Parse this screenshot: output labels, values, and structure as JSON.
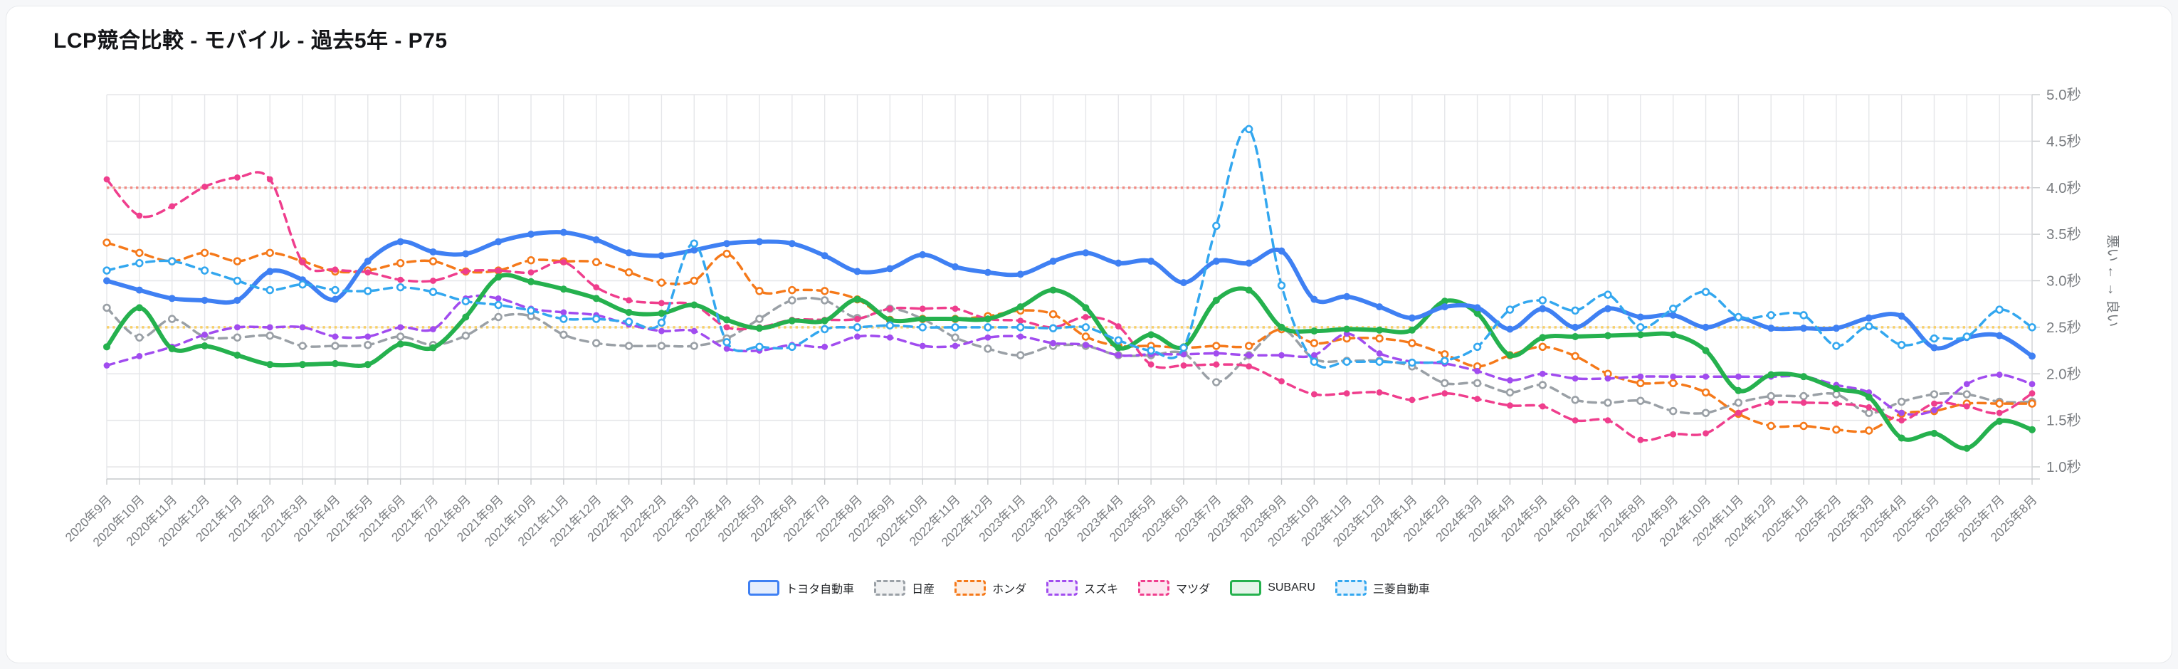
{
  "page": {
    "title": "LCP競合比較 - モバイル - 過去5年 - P75"
  },
  "chart_data": {
    "type": "line",
    "title": "LCP競合比較 - モバイル - 過去5年 - P75",
    "y_axis_title": "悪い ← → 良い",
    "y_unit": "秒",
    "ylim": [
      0.87,
      5.0
    ],
    "grid": true,
    "legend_position": "bottom",
    "y_tick_labels": [
      "1.0秒",
      "1.5秒",
      "2.0秒",
      "2.5秒",
      "3.0秒",
      "3.5秒",
      "4.0秒",
      "4.5秒",
      "5.0秒"
    ],
    "y_tick_values": [
      1.0,
      1.5,
      2.0,
      2.5,
      3.0,
      3.5,
      4.0,
      4.5,
      5.0
    ],
    "guidelines": [
      {
        "name": "poor-threshold",
        "value": 4.0,
        "color": "#F28C84"
      },
      {
        "name": "needs-improvement-threshold",
        "value": 2.5,
        "color": "#F8D06B"
      }
    ],
    "x_labels": [
      "2020年9月",
      "2020年10月",
      "2020年11月",
      "2020年12月",
      "2021年1月",
      "2021年2月",
      "2021年3月",
      "2021年4月",
      "2021年5月",
      "2021年6月",
      "2021年7月",
      "2021年8月",
      "2021年9月",
      "2021年10月",
      "2021年11月",
      "2021年12月",
      "2022年1月",
      "2022年2月",
      "2022年3月",
      "2022年4月",
      "2022年5月",
      "2022年6月",
      "2022年7月",
      "2022年8月",
      "2022年9月",
      "2022年10月",
      "2022年11月",
      "2022年12月",
      "2023年1月",
      "2023年2月",
      "2023年3月",
      "2023年4月",
      "2023年5月",
      "2023年6月",
      "2023年7月",
      "2023年8月",
      "2023年9月",
      "2023年10月",
      "2023年11月",
      "2023年12月",
      "2024年1月",
      "2024年2月",
      "2024年3月",
      "2024年4月",
      "2024年5月",
      "2024年6月",
      "2024年7月",
      "2024年8月",
      "2024年9月",
      "2024年10月",
      "2024年11月",
      "2024年12月",
      "2025年1月",
      "2025年2月",
      "2025年3月",
      "2025年4月",
      "2025年5月",
      "2025年6月",
      "2025年7月",
      "2025年8月"
    ],
    "series": [
      {
        "key": "toyota",
        "name": "トヨタ自動車",
        "color": "#3F80F3",
        "tint": "#E5EEFD",
        "style": "solid",
        "width": 6,
        "marker": "filled",
        "values": [
          3.0,
          2.9,
          2.81,
          2.79,
          2.79,
          3.1,
          3.01,
          2.8,
          3.21,
          3.42,
          3.31,
          3.29,
          3.42,
          3.5,
          3.52,
          3.44,
          3.3,
          3.27,
          3.33,
          3.4,
          3.42,
          3.4,
          3.27,
          3.1,
          3.13,
          3.28,
          3.15,
          3.09,
          3.07,
          3.21,
          3.3,
          3.19,
          3.21,
          2.98,
          3.21,
          3.19,
          3.32,
          2.8,
          2.83,
          2.72,
          2.6,
          2.72,
          2.71,
          2.48,
          2.7,
          2.5,
          2.7,
          2.61,
          2.63,
          2.5,
          2.6,
          2.49,
          2.49,
          2.49,
          2.6,
          2.62,
          2.28,
          2.39,
          2.41,
          2.19
        ]
      },
      {
        "key": "nissan",
        "name": "日産",
        "color": "#9AA0A6",
        "tint": "#F0F1F2",
        "style": "dashed",
        "width": 3.5,
        "marker": "open",
        "values": [
          2.71,
          2.39,
          2.59,
          2.4,
          2.39,
          2.41,
          2.3,
          2.3,
          2.31,
          2.4,
          2.31,
          2.41,
          2.61,
          2.62,
          2.42,
          2.33,
          2.3,
          2.3,
          2.3,
          2.38,
          2.59,
          2.79,
          2.79,
          2.6,
          2.7,
          2.59,
          2.39,
          2.27,
          2.2,
          2.3,
          2.3,
          2.2,
          2.2,
          2.22,
          1.91,
          2.2,
          2.48,
          2.16,
          2.14,
          2.14,
          2.08,
          1.9,
          1.9,
          1.8,
          1.88,
          1.72,
          1.69,
          1.71,
          1.6,
          1.58,
          1.69,
          1.76,
          1.76,
          1.78,
          1.58,
          1.7,
          1.78,
          1.78,
          1.7,
          1.7
        ]
      },
      {
        "key": "honda",
        "name": "ホンダ",
        "color": "#F5791A",
        "tint": "#FDEEE2",
        "style": "dashed",
        "width": 3.5,
        "marker": "open",
        "values": [
          3.41,
          3.3,
          3.21,
          3.3,
          3.21,
          3.3,
          3.21,
          3.1,
          3.11,
          3.19,
          3.21,
          3.1,
          3.11,
          3.22,
          3.21,
          3.2,
          3.09,
          2.98,
          3.0,
          3.29,
          2.89,
          2.9,
          2.89,
          2.8,
          2.58,
          2.59,
          2.59,
          2.62,
          2.68,
          2.64,
          2.4,
          2.3,
          2.3,
          2.28,
          2.3,
          2.3,
          2.48,
          2.33,
          2.38,
          2.38,
          2.33,
          2.21,
          2.08,
          2.2,
          2.29,
          2.19,
          2.0,
          1.9,
          1.9,
          1.8,
          1.57,
          1.44,
          1.44,
          1.4,
          1.39,
          1.57,
          1.6,
          1.68,
          1.68,
          1.68
        ]
      },
      {
        "key": "suzuki",
        "name": "スズキ",
        "color": "#A14CEF",
        "tint": "#F3E9FD",
        "style": "dashed",
        "width": 3.5,
        "marker": "filled",
        "values": [
          2.09,
          2.19,
          2.29,
          2.42,
          2.5,
          2.5,
          2.5,
          2.4,
          2.4,
          2.5,
          2.48,
          2.81,
          2.81,
          2.7,
          2.66,
          2.63,
          2.53,
          2.46,
          2.46,
          2.27,
          2.25,
          2.31,
          2.29,
          2.4,
          2.39,
          2.3,
          2.3,
          2.39,
          2.4,
          2.33,
          2.31,
          2.2,
          2.21,
          2.21,
          2.22,
          2.2,
          2.2,
          2.2,
          2.43,
          2.22,
          2.13,
          2.11,
          2.03,
          1.93,
          2.0,
          1.95,
          1.95,
          1.97,
          1.97,
          1.97,
          1.97,
          1.97,
          1.97,
          1.88,
          1.8,
          1.58,
          1.61,
          1.89,
          1.99,
          1.89
        ]
      },
      {
        "key": "mazda",
        "name": "マツダ",
        "color": "#EF3E8D",
        "tint": "#FDE5F0",
        "style": "dashed",
        "width": 3.5,
        "marker": "filled",
        "values": [
          4.09,
          3.7,
          3.8,
          4.01,
          4.11,
          4.09,
          3.2,
          3.12,
          3.09,
          3.01,
          3.0,
          3.1,
          3.11,
          3.09,
          3.2,
          2.93,
          2.79,
          2.76,
          2.74,
          2.5,
          2.5,
          2.58,
          2.58,
          2.59,
          2.7,
          2.7,
          2.7,
          2.59,
          2.57,
          2.5,
          2.61,
          2.51,
          2.1,
          2.09,
          2.1,
          2.08,
          1.92,
          1.78,
          1.79,
          1.8,
          1.72,
          1.79,
          1.73,
          1.66,
          1.65,
          1.5,
          1.5,
          1.29,
          1.35,
          1.36,
          1.58,
          1.69,
          1.69,
          1.68,
          1.64,
          1.5,
          1.68,
          1.65,
          1.58,
          1.79
        ]
      },
      {
        "key": "subaru",
        "name": "SUBARU",
        "color": "#25B14E",
        "tint": "#E4F5E9",
        "style": "solid",
        "width": 6,
        "marker": "filled",
        "values": [
          2.29,
          2.71,
          2.27,
          2.3,
          2.2,
          2.1,
          2.1,
          2.11,
          2.1,
          2.32,
          2.28,
          2.61,
          3.04,
          2.99,
          2.91,
          2.81,
          2.66,
          2.65,
          2.74,
          2.58,
          2.49,
          2.57,
          2.57,
          2.8,
          2.58,
          2.59,
          2.59,
          2.59,
          2.72,
          2.9,
          2.71,
          2.28,
          2.42,
          2.29,
          2.79,
          2.9,
          2.5,
          2.46,
          2.48,
          2.47,
          2.47,
          2.78,
          2.65,
          2.2,
          2.39,
          2.4,
          2.41,
          2.42,
          2.42,
          2.25,
          1.82,
          1.99,
          1.97,
          1.84,
          1.75,
          1.31,
          1.36,
          1.2,
          1.49,
          1.4
        ]
      },
      {
        "key": "mitsubishi",
        "name": "三菱自動車",
        "color": "#33A7EF",
        "tint": "#E3F2FD",
        "style": "dashed",
        "width": 3.5,
        "marker": "open",
        "values": [
          3.11,
          3.19,
          3.21,
          3.11,
          3.0,
          2.9,
          2.96,
          2.9,
          2.89,
          2.93,
          2.88,
          2.78,
          2.74,
          2.68,
          2.59,
          2.59,
          2.56,
          2.55,
          3.4,
          2.34,
          2.29,
          2.29,
          2.48,
          2.5,
          2.52,
          2.5,
          2.5,
          2.5,
          2.5,
          2.49,
          2.5,
          2.36,
          2.25,
          2.28,
          3.59,
          4.63,
          2.95,
          2.13,
          2.13,
          2.13,
          2.12,
          2.14,
          2.29,
          2.69,
          2.79,
          2.68,
          2.85,
          2.5,
          2.7,
          2.88,
          2.61,
          2.63,
          2.63,
          2.3,
          2.51,
          2.31,
          2.38,
          2.4,
          2.69,
          2.5
        ]
      }
    ]
  }
}
